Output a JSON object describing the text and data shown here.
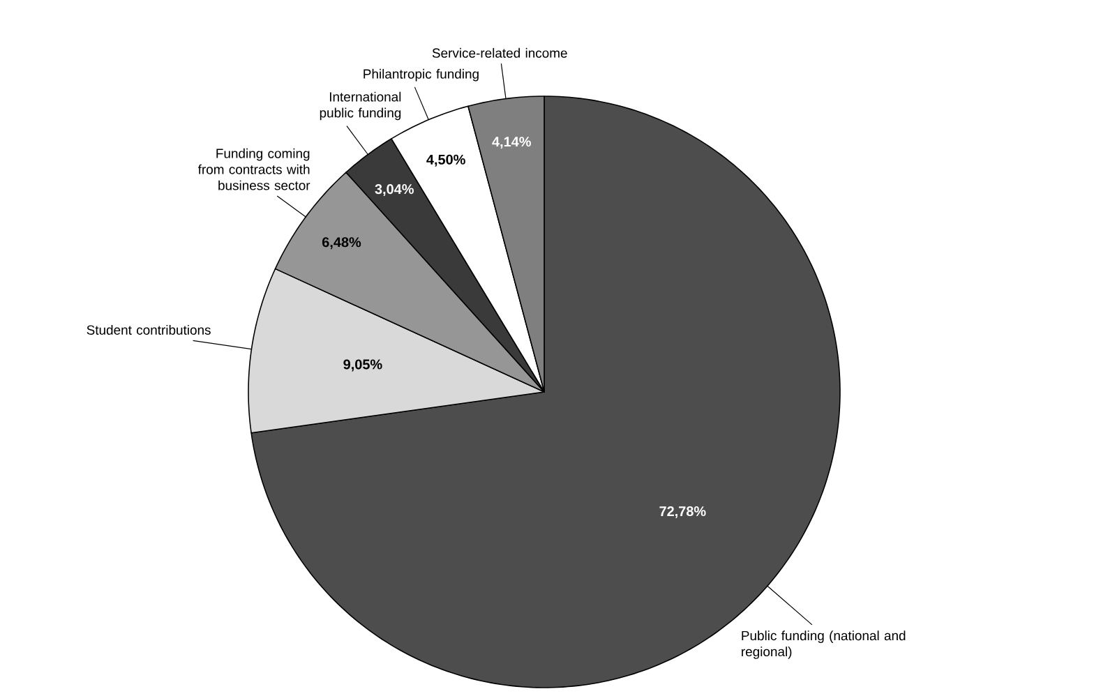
{
  "chart_data": {
    "type": "pie",
    "categories": [
      "Public funding (national and regional)",
      "Student contributions",
      "Funding coming from contracts with business sector",
      "International public funding",
      "Philantropic funding",
      "Service-related income"
    ],
    "values": [
      72.78,
      9.05,
      6.48,
      3.04,
      4.5,
      4.14
    ],
    "value_labels": [
      "72,78%",
      "9,05%",
      "6,48%",
      "3,04%",
      "4,50%",
      "4,14%"
    ],
    "colors": [
      "#4d4d4d",
      "#d9d9d9",
      "#969696",
      "#3a3a3a",
      "#ffffff",
      "#7f7f7f"
    ]
  }
}
